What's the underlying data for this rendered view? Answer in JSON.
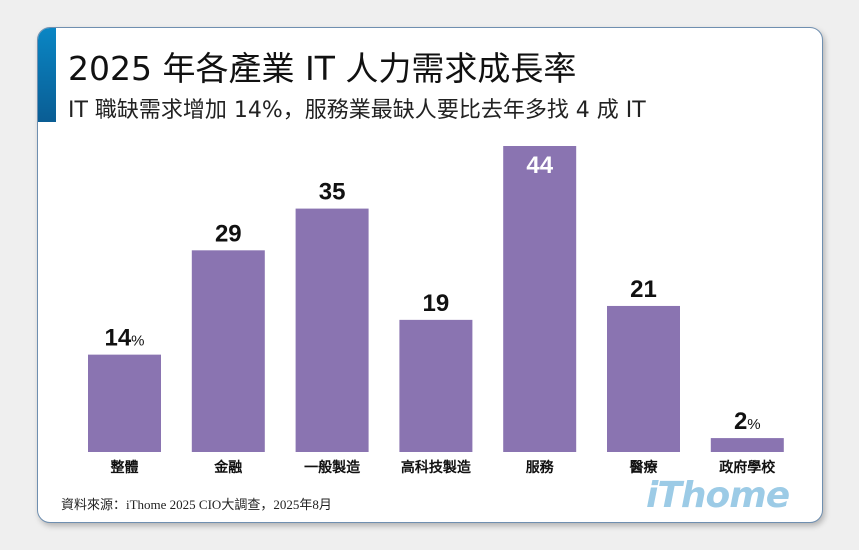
{
  "chart_data": {
    "type": "bar",
    "title": "2025 年各產業 IT 人力需求成長率",
    "subtitle": "IT 職缺需求增加 14%，服務業最缺人要比去年多找 4 成 IT",
    "categories": [
      "整體",
      "金融",
      "一般製造",
      "高科技製造",
      "服務",
      "醫療",
      "政府學校"
    ],
    "values": [
      14,
      29,
      35,
      19,
      44,
      21,
      2
    ],
    "value_labels": [
      "14",
      "29",
      "35",
      "19",
      "44",
      "21",
      "2"
    ],
    "percent_suffix_on": [
      0,
      6
    ],
    "unit": "%",
    "ylim": [
      0,
      44
    ],
    "bar_color": "#8a74b1",
    "source": "資料來源：iThome 2025 CIO大調查，2025年8月",
    "logo": "iThome"
  }
}
